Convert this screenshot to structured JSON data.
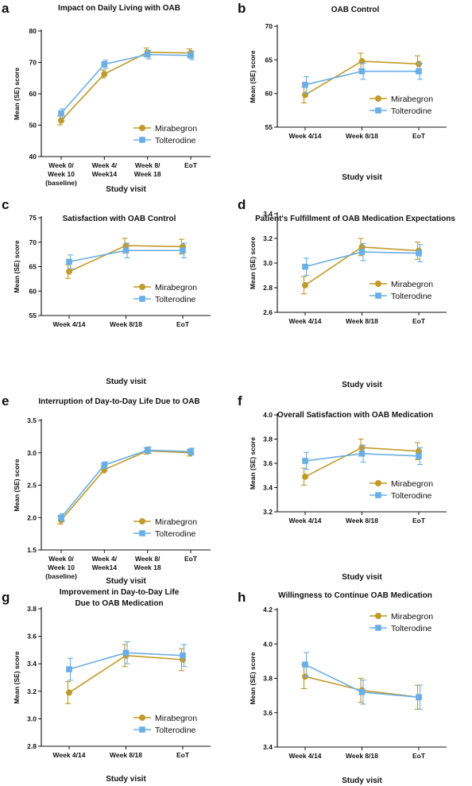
{
  "colors": {
    "mirabegron": "#c09a2a",
    "tolterodine": "#6aaee6"
  },
  "chart_data": [
    {
      "panel_label": "a",
      "type": "line",
      "title": [
        "Impact on Daily Living with OAB"
      ],
      "ylabel": "Mean (SE) score",
      "xlabel": "Study visit",
      "ylim": [
        40,
        80
      ],
      "yticks": [
        "40",
        "50",
        "60",
        "70",
        "80"
      ],
      "categories": [
        [
          "Week 0/",
          "Week 10",
          "(baseline)"
        ],
        [
          "Week 4/",
          "Week14"
        ],
        [
          "Week 8/",
          "Week 18"
        ],
        [
          "EoT"
        ]
      ],
      "legend_position": "bottom-right",
      "series": [
        {
          "name": "Mirabegron",
          "marker": "circle",
          "values": [
            51.5,
            66.3,
            73.2,
            73.0
          ],
          "se": [
            1.4,
            1.3,
            1.4,
            1.3
          ]
        },
        {
          "name": "Tolterodine",
          "marker": "square",
          "values": [
            53.8,
            69.4,
            72.5,
            72.2
          ],
          "se": [
            1.4,
            1.3,
            1.4,
            1.3
          ]
        }
      ]
    },
    {
      "panel_label": "b",
      "type": "line",
      "title": [
        "OAB Control"
      ],
      "ylabel": "Mean (SE) score",
      "xlabel": "Study visit",
      "ylim": [
        55,
        70
      ],
      "yticks": [
        "55",
        "60",
        "65",
        "70"
      ],
      "categories": [
        [
          "Week 4/14"
        ],
        [
          "Week 8/18"
        ],
        [
          "EoT"
        ]
      ],
      "legend_position": "bottom-right",
      "series": [
        {
          "name": "Mirabegron",
          "marker": "circle",
          "values": [
            59.8,
            64.8,
            64.4
          ],
          "se": [
            1.2,
            1.2,
            1.2
          ]
        },
        {
          "name": "Tolterodine",
          "marker": "square",
          "values": [
            61.3,
            63.3,
            63.3
          ],
          "se": [
            1.2,
            1.2,
            1.2
          ]
        }
      ]
    },
    {
      "panel_label": "c",
      "type": "line",
      "title": [
        "Satisfaction with OAB Control"
      ],
      "ylabel": "Mean (SE) score",
      "xlabel": "Study visit",
      "ylim": [
        55,
        75
      ],
      "yticks": [
        "55",
        "60",
        "65",
        "70",
        "75"
      ],
      "categories": [
        [
          "Week 4/14"
        ],
        [
          "Week 8/18"
        ],
        [
          "EoT"
        ]
      ],
      "legend_position": "bottom-right",
      "series": [
        {
          "name": "Mirabegron",
          "marker": "circle",
          "values": [
            64.0,
            69.3,
            69.1
          ],
          "se": [
            1.4,
            1.5,
            1.5
          ]
        },
        {
          "name": "Tolterodine",
          "marker": "square",
          "values": [
            66.0,
            68.3,
            68.3
          ],
          "se": [
            1.4,
            1.5,
            1.5
          ]
        }
      ]
    },
    {
      "panel_label": "d",
      "type": "line",
      "title": [
        "Patient's Fulfillment of OAB Medication Expectations"
      ],
      "ylabel": "Mean (SE) score",
      "xlabel": "Study visit",
      "ylim": [
        2.6,
        3.4
      ],
      "yticks": [
        "2.6",
        "2.8",
        "3.0",
        "3.2",
        "3.4"
      ],
      "categories": [
        [
          "Week 4/14"
        ],
        [
          "Week 8/18"
        ],
        [
          "EoT"
        ]
      ],
      "legend_position": "bottom-right",
      "series": [
        {
          "name": "Mirabegron",
          "marker": "circle",
          "values": [
            2.82,
            3.13,
            3.1
          ],
          "se": [
            0.07,
            0.07,
            0.07
          ]
        },
        {
          "name": "Tolterodine",
          "marker": "square",
          "values": [
            2.97,
            3.09,
            3.08
          ],
          "se": [
            0.07,
            0.07,
            0.07
          ]
        }
      ]
    },
    {
      "panel_label": "e",
      "type": "line",
      "title": [
        "Interruption of Day-to-Day Life Due to OAB"
      ],
      "ylabel": "Mean (SE) score",
      "xlabel": "Study visit",
      "ylim": [
        1.5,
        3.5
      ],
      "yticks": [
        "1.5",
        "2.0",
        "2.5",
        "3.0",
        "3.5"
      ],
      "categories": [
        [
          "Week 0/",
          "Week 10",
          "(baseline)"
        ],
        [
          "Week 4/",
          "Week14"
        ],
        [
          "Week 8/",
          "Week 18"
        ],
        [
          "EoT"
        ]
      ],
      "legend_position": "bottom-right",
      "series": [
        {
          "name": "Mirabegron",
          "marker": "circle",
          "values": [
            1.96,
            2.74,
            3.03,
            3.0
          ],
          "se": [
            0.06,
            0.05,
            0.05,
            0.05
          ]
        },
        {
          "name": "Tolterodine",
          "marker": "square",
          "values": [
            2.0,
            2.81,
            3.04,
            3.02
          ],
          "se": [
            0.06,
            0.05,
            0.05,
            0.05
          ]
        }
      ]
    },
    {
      "panel_label": "f",
      "type": "line",
      "title": [
        "Overall Satisfaction with OAB Medication"
      ],
      "ylabel": "Mean (SE) score",
      "xlabel": "Study visit",
      "ylim": [
        3.2,
        4.0
      ],
      "yticks": [
        "3.2",
        "3.4",
        "3.6",
        "3.8",
        "4.0"
      ],
      "categories": [
        [
          "Week 4/14"
        ],
        [
          "Week 8/18"
        ],
        [
          "EoT"
        ]
      ],
      "legend_position": "bottom-right",
      "series": [
        {
          "name": "Mirabegron",
          "marker": "circle",
          "values": [
            3.49,
            3.73,
            3.7
          ],
          "se": [
            0.07,
            0.07,
            0.07
          ]
        },
        {
          "name": "Tolterodine",
          "marker": "square",
          "values": [
            3.62,
            3.68,
            3.66
          ],
          "se": [
            0.07,
            0.07,
            0.07
          ]
        }
      ]
    },
    {
      "panel_label": "g",
      "type": "line",
      "title": [
        "Improvement in Day-to-Day Life",
        "Due to OAB Medication"
      ],
      "ylabel": "Mean (SE) score",
      "xlabel": "Study visit",
      "ylim": [
        2.8,
        3.8
      ],
      "yticks": [
        "2.8",
        "3.0",
        "3.2",
        "3.4",
        "3.6",
        "3.8"
      ],
      "categories": [
        [
          "Week 4/14"
        ],
        [
          "Week 8/18"
        ],
        [
          "EoT"
        ]
      ],
      "legend_position": "bottom-right",
      "series": [
        {
          "name": "Mirabegron",
          "marker": "circle",
          "values": [
            3.19,
            3.46,
            3.43
          ],
          "se": [
            0.08,
            0.08,
            0.08
          ]
        },
        {
          "name": "Tolterodine",
          "marker": "square",
          "values": [
            3.36,
            3.48,
            3.46
          ],
          "se": [
            0.08,
            0.08,
            0.08
          ]
        }
      ]
    },
    {
      "panel_label": "h",
      "type": "line",
      "title": [
        "Willingness to Continue OAB Medication"
      ],
      "ylabel": "Mean (SE) score",
      "xlabel": "Study visit",
      "ylim": [
        3.4,
        4.2
      ],
      "yticks": [
        "3.4",
        "3.6",
        "3.8",
        "4.0",
        "4.2"
      ],
      "categories": [
        [
          "Week 4/14"
        ],
        [
          "Week 8/18"
        ],
        [
          "EoT"
        ]
      ],
      "legend_position": "top-right",
      "series": [
        {
          "name": "Mirabegron",
          "marker": "circle",
          "values": [
            3.81,
            3.73,
            3.69
          ],
          "se": [
            0.07,
            0.07,
            0.07
          ]
        },
        {
          "name": "Tolterodine",
          "marker": "square",
          "values": [
            3.88,
            3.72,
            3.69
          ],
          "se": [
            0.07,
            0.07,
            0.07
          ]
        }
      ]
    }
  ]
}
